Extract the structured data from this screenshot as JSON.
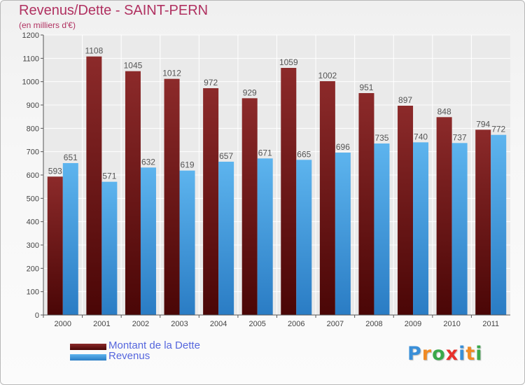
{
  "title": "Revenus/Dette - SAINT-PERN",
  "subtitle": "(en milliers d'€)",
  "legend": [
    {
      "label": "Montant de la Dette",
      "color": "#7a1f1f"
    },
    {
      "label": "Revenus",
      "color": "#4da6e8"
    }
  ],
  "logo": {
    "text": "Proxiti",
    "letters": [
      {
        "char": "P",
        "color": "#3a8fd8"
      },
      {
        "char": "r",
        "color": "#f08a24"
      },
      {
        "char": "o",
        "color": "#3aa84a"
      },
      {
        "char": "x",
        "color": "#e8302a"
      },
      {
        "char": "i",
        "color": "#3a8fd8"
      },
      {
        "char": "t",
        "color": "#f08a24"
      },
      {
        "char": "i",
        "color": "#3aa84a"
      }
    ]
  },
  "chart_data": {
    "type": "bar",
    "title": "Revenus/Dette - SAINT-PERN",
    "subtitle": "(en milliers d'€)",
    "categories": [
      "2000",
      "2001",
      "2002",
      "2003",
      "2004",
      "2005",
      "2006",
      "2007",
      "2008",
      "2009",
      "2010",
      "2011"
    ],
    "series": [
      {
        "name": "Montant de la Dette",
        "color": "#7a1f1f",
        "values": [
          593,
          1108,
          1045,
          1012,
          972,
          929,
          1059,
          1002,
          951,
          897,
          848,
          794
        ]
      },
      {
        "name": "Revenus",
        "color": "#4da6e8",
        "values": [
          651,
          571,
          632,
          619,
          657,
          671,
          665,
          696,
          735,
          740,
          737,
          772
        ]
      }
    ],
    "ylim": [
      0,
      1200
    ],
    "yticks": [
      0,
      100,
      200,
      300,
      400,
      500,
      600,
      700,
      800,
      900,
      1000,
      1100,
      1200
    ],
    "grid": true,
    "legend_position": "bottom-left"
  }
}
